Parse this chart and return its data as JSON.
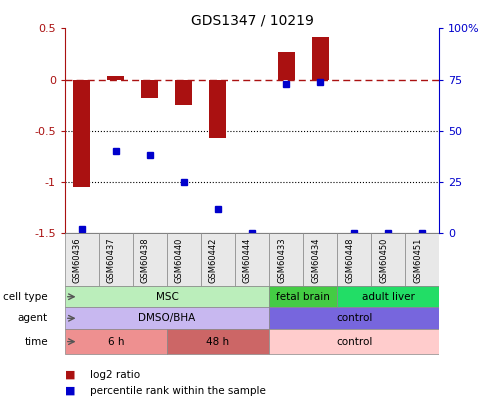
{
  "title": "GDS1347 / 10219",
  "samples": [
    "GSM60436",
    "GSM60437",
    "GSM60438",
    "GSM60440",
    "GSM60442",
    "GSM60444",
    "GSM60433",
    "GSM60434",
    "GSM60448",
    "GSM60450",
    "GSM60451"
  ],
  "log2_ratio": [
    -1.05,
    0.04,
    -0.18,
    -0.25,
    -0.57,
    0.0,
    0.27,
    0.42,
    0.0,
    0.0,
    0.0
  ],
  "percentile_rank": [
    2,
    40,
    38,
    25,
    12,
    0,
    73,
    74,
    0,
    0,
    0
  ],
  "ylim_left": [
    -1.5,
    0.5
  ],
  "ylim_right": [
    0,
    100
  ],
  "bar_color": "#AA1111",
  "dot_color": "#0000CC",
  "cell_type_labels": [
    {
      "text": "MSC",
      "start": 0,
      "end": 5,
      "color": "#BBEEBB"
    },
    {
      "text": "fetal brain",
      "start": 6,
      "end": 7,
      "color": "#44CC44"
    },
    {
      "text": "adult liver",
      "start": 8,
      "end": 10,
      "color": "#22DD66"
    }
  ],
  "agent_labels": [
    {
      "text": "DMSO/BHA",
      "start": 0,
      "end": 5,
      "color": "#C8B8F0"
    },
    {
      "text": "control",
      "start": 6,
      "end": 10,
      "color": "#7766DD"
    }
  ],
  "time_labels": [
    {
      "text": "6 h",
      "start": 0,
      "end": 2,
      "color": "#EE9090"
    },
    {
      "text": "48 h",
      "start": 3,
      "end": 5,
      "color": "#CC6666"
    },
    {
      "text": "control",
      "start": 6,
      "end": 10,
      "color": "#FFCCCC"
    }
  ],
  "row_labels": [
    "cell type",
    "agent",
    "time"
  ],
  "legend_items": [
    {
      "label": "log2 ratio",
      "color": "#AA1111"
    },
    {
      "label": "percentile rank within the sample",
      "color": "#0000CC"
    }
  ],
  "left_yticks": [
    -1.5,
    -1.0,
    -0.5,
    0.0,
    0.5
  ],
  "right_yticks": [
    0,
    25,
    50,
    75,
    100
  ]
}
